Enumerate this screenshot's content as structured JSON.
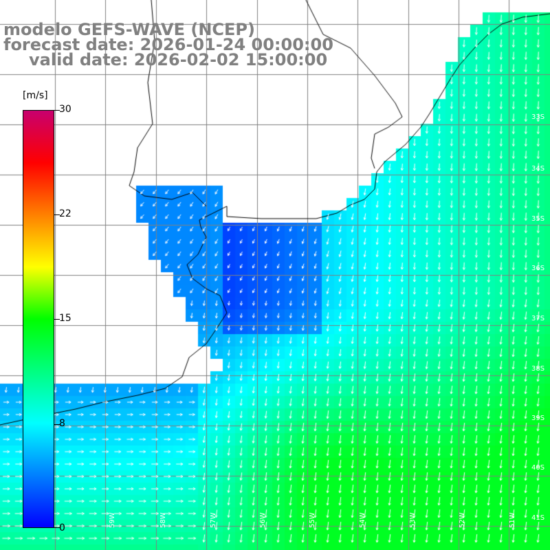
{
  "title": {
    "line1": "modelo GEFS-WAVE (NCEP)",
    "line2": "forecast date: 2026-01-24 00:00:00",
    "line3": "valid date: 2026-02-02 15:00:00"
  },
  "colorbar": {
    "unit": "[m/s]",
    "ticks": [
      "30",
      "22",
      "15",
      "8",
      "0"
    ],
    "range": [
      0,
      30
    ],
    "stops": [
      "#0000ff",
      "#0080ff",
      "#00ffff",
      "#00ff80",
      "#00ff00",
      "#ffff00",
      "#ff8000",
      "#ff0000",
      "#c8006e"
    ]
  },
  "lat_labels": [
    "33S",
    "34S",
    "35S",
    "36S",
    "37S",
    "38S",
    "39S",
    "40S",
    "41S"
  ],
  "lon_labels": [
    "59W",
    "58W",
    "57W",
    "56W",
    "55W",
    "54W",
    "53W",
    "52W",
    "51W",
    "50W"
  ],
  "colors": {
    "land": "#ffffff",
    "grid": "#808080",
    "coast": "#000000",
    "arrow": "#ffffff",
    "title": "#808080"
  }
}
